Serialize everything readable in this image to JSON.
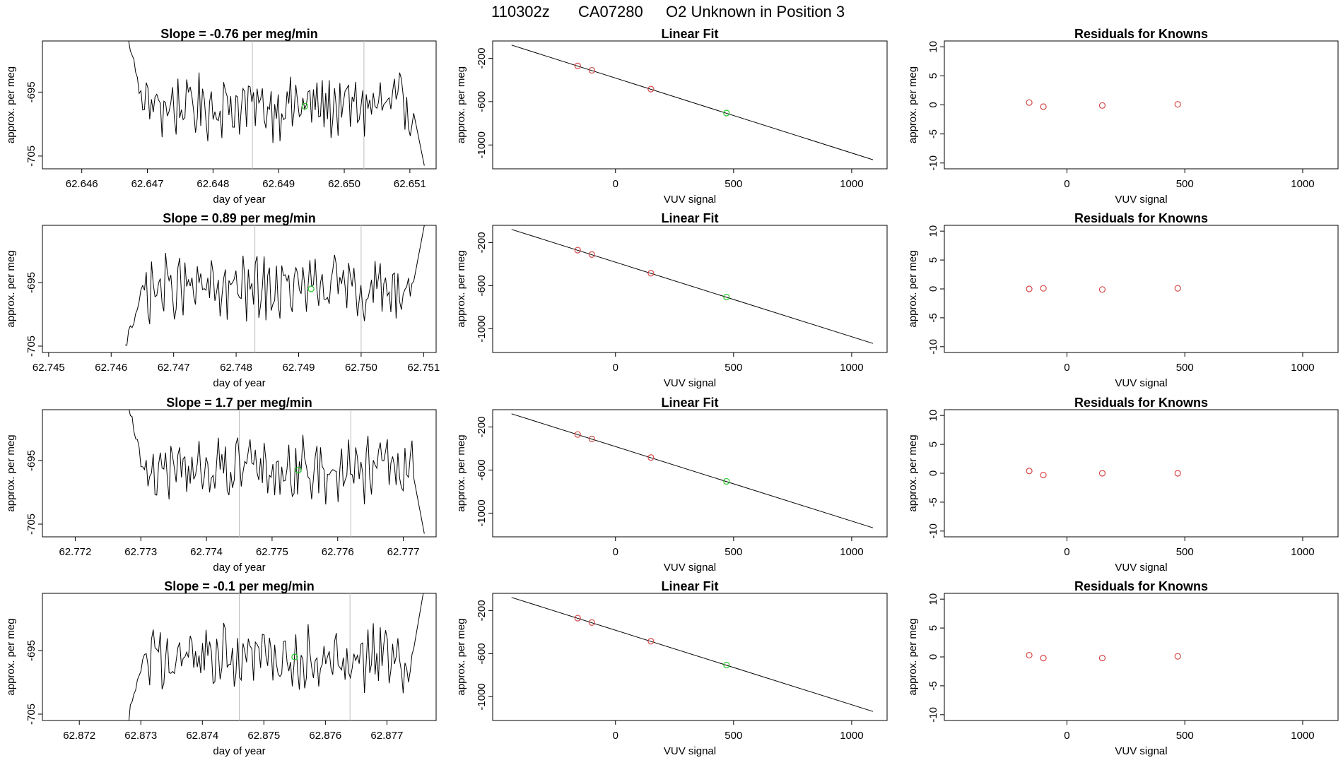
{
  "figure_title_parts": [
    "110302z",
    "CA07280",
    "O2 Unknown in Position  3"
  ],
  "chart_data": [
    {
      "type": "line",
      "title": "Slope =  -0.76  per meg/min",
      "xlabel": "day of year",
      "ylabel": "approx. per meg",
      "xlim": [
        62.6454,
        62.6514
      ],
      "ylim": [
        -707.0,
        -687.0
      ],
      "xticks": [
        "62.646",
        "62.647",
        "62.648",
        "62.649",
        "62.650",
        "62.651"
      ],
      "yticks": [
        "-695",
        "-705"
      ],
      "vlines": [
        62.6486,
        62.6503
      ],
      "marker": {
        "x": 62.6494,
        "y": -697.2,
        "color": "#22cc22"
      },
      "end_left": -684,
      "end_right": -706.5
    },
    {
      "type": "scatter",
      "title": "Linear Fit",
      "xlabel": "VUV signal",
      "ylabel": "approx. per meg",
      "xlim": [
        -520,
        1150
      ],
      "ylim": [
        -1220,
        -40
      ],
      "xticks": [
        "0",
        "500",
        "1000"
      ],
      "yticks": [
        "-200",
        "-600",
        "-1000"
      ],
      "line": {
        "x": [
          -440,
          1090
        ],
        "y": [
          -78,
          -1136
        ]
      },
      "points": [
        {
          "x": -160,
          "y": -270,
          "color": "#d64545"
        },
        {
          "x": -100,
          "y": -311,
          "color": "#d64545"
        },
        {
          "x": 150,
          "y": -484,
          "color": "#d64545"
        },
        {
          "x": 470,
          "y": -705,
          "color": "#22cc22"
        }
      ]
    },
    {
      "type": "scatter",
      "title": "Residuals for Knowns",
      "xlabel": "VUV signal",
      "ylabel": "approx. per meg",
      "xlim": [
        -520,
        1150
      ],
      "ylim": [
        -11,
        11
      ],
      "xticks": [
        "0",
        "500",
        "1000"
      ],
      "yticks": [
        "10",
        "5",
        "0",
        "-5",
        "-10"
      ],
      "points": [
        {
          "x": -160,
          "y": 0.4,
          "color": "#d64545"
        },
        {
          "x": -100,
          "y": -0.3,
          "color": "#d64545"
        },
        {
          "x": 150,
          "y": -0.1,
          "color": "#d64545"
        },
        {
          "x": 470,
          "y": 0.1,
          "color": "#d64545"
        }
      ]
    },
    {
      "type": "line",
      "title": "Slope =  0.89  per meg/min",
      "xlabel": "day of year",
      "ylabel": "approx. per meg",
      "xlim": [
        62.7449,
        62.7512
      ],
      "ylim": [
        -706.0,
        -686.0
      ],
      "xticks": [
        "62.745",
        "62.746",
        "62.747",
        "62.748",
        "62.749",
        "62.750",
        "62.751"
      ],
      "yticks": [
        "-695",
        "-705"
      ],
      "vlines": [
        62.7483,
        62.75
      ],
      "marker": {
        "x": 62.7492,
        "y": -696.0,
        "color": "#22cc22"
      },
      "end_left": -705,
      "end_right": -686
    },
    {
      "type": "scatter",
      "title": "Linear Fit",
      "xlabel": "VUV signal",
      "ylabel": "approx. per meg",
      "xlim": [
        -520,
        1150
      ],
      "ylim": [
        -1220,
        -40
      ],
      "xticks": [
        "0",
        "500",
        "1000"
      ],
      "yticks": [
        "-200",
        "-600",
        "-1000"
      ],
      "line": {
        "x": [
          -440,
          1090
        ],
        "y": [
          -78,
          -1136
        ]
      },
      "points": [
        {
          "x": -160,
          "y": -270,
          "color": "#d64545"
        },
        {
          "x": -100,
          "y": -311,
          "color": "#d64545"
        },
        {
          "x": 150,
          "y": -484,
          "color": "#d64545"
        },
        {
          "x": 470,
          "y": -705,
          "color": "#22cc22"
        }
      ]
    },
    {
      "type": "scatter",
      "title": "Residuals for Knowns",
      "xlabel": "VUV signal",
      "ylabel": "approx. per meg",
      "xlim": [
        -520,
        1150
      ],
      "ylim": [
        -11,
        11
      ],
      "xticks": [
        "0",
        "500",
        "1000"
      ],
      "yticks": [
        "10",
        "5",
        "0",
        "-5",
        "-10"
      ],
      "points": [
        {
          "x": -160,
          "y": 0.0,
          "color": "#d64545"
        },
        {
          "x": -100,
          "y": 0.1,
          "color": "#d64545"
        },
        {
          "x": 150,
          "y": -0.1,
          "color": "#d64545"
        },
        {
          "x": 470,
          "y": 0.1,
          "color": "#d64545"
        }
      ]
    },
    {
      "type": "line",
      "title": "Slope =  1.7  per meg/min",
      "xlabel": "day of year",
      "ylabel": "approx. per meg",
      "xlim": [
        62.7715,
        62.7775
      ],
      "ylim": [
        -707.0,
        -687.0
      ],
      "xticks": [
        "62.772",
        "62.773",
        "62.774",
        "62.775",
        "62.776",
        "62.777"
      ],
      "yticks": [
        "-695",
        "-705"
      ],
      "vlines": [
        62.7745,
        62.7762
      ],
      "marker": {
        "x": 62.7754,
        "y": -696.5,
        "color": "#22cc22"
      },
      "end_left": -684,
      "end_right": -706.5
    },
    {
      "type": "scatter",
      "title": "Linear Fit",
      "xlabel": "VUV signal",
      "ylabel": "approx. per meg",
      "xlim": [
        -520,
        1150
      ],
      "ylim": [
        -1220,
        -40
      ],
      "xticks": [
        "0",
        "500",
        "1000"
      ],
      "yticks": [
        "-200",
        "-600",
        "-1000"
      ],
      "line": {
        "x": [
          -440,
          1090
        ],
        "y": [
          -78,
          -1136
        ]
      },
      "points": [
        {
          "x": -160,
          "y": -270,
          "color": "#d64545"
        },
        {
          "x": -100,
          "y": -311,
          "color": "#d64545"
        },
        {
          "x": 150,
          "y": -484,
          "color": "#d64545"
        },
        {
          "x": 470,
          "y": -705,
          "color": "#22cc22"
        }
      ]
    },
    {
      "type": "scatter",
      "title": "Residuals for Knowns",
      "xlabel": "VUV signal",
      "ylabel": "approx. per meg",
      "xlim": [
        -520,
        1150
      ],
      "ylim": [
        -11,
        11
      ],
      "xticks": [
        "0",
        "500",
        "1000"
      ],
      "yticks": [
        "10",
        "5",
        "0",
        "-5",
        "-10"
      ],
      "points": [
        {
          "x": -160,
          "y": 0.4,
          "color": "#d64545"
        },
        {
          "x": -100,
          "y": -0.3,
          "color": "#d64545"
        },
        {
          "x": 150,
          "y": 0.0,
          "color": "#d64545"
        },
        {
          "x": 470,
          "y": 0.0,
          "color": "#d64545"
        }
      ]
    },
    {
      "type": "line",
      "title": "Slope =  -0.1  per meg/min",
      "xlabel": "day of year",
      "ylabel": "approx. per meg",
      "xlim": [
        62.8714,
        62.8778
      ],
      "ylim": [
        -706.0,
        -686.0
      ],
      "xticks": [
        "62.872",
        "62.873",
        "62.874",
        "62.875",
        "62.876",
        "62.877"
      ],
      "yticks": [
        "-695",
        "-705"
      ],
      "vlines": [
        62.8746,
        62.8764
      ],
      "marker": {
        "x": 62.8755,
        "y": -696.0,
        "color": "#22cc22"
      },
      "end_left": -708,
      "end_right": -685
    },
    {
      "type": "scatter",
      "title": "Linear Fit",
      "xlabel": "VUV signal",
      "ylabel": "approx. per meg",
      "xlim": [
        -520,
        1150
      ],
      "ylim": [
        -1220,
        -40
      ],
      "xticks": [
        "0",
        "500",
        "1000"
      ],
      "yticks": [
        "-200",
        "-600",
        "-1000"
      ],
      "line": {
        "x": [
          -440,
          1090
        ],
        "y": [
          -78,
          -1136
        ]
      },
      "points": [
        {
          "x": -160,
          "y": -270,
          "color": "#d64545"
        },
        {
          "x": -100,
          "y": -311,
          "color": "#d64545"
        },
        {
          "x": 150,
          "y": -484,
          "color": "#d64545"
        },
        {
          "x": 470,
          "y": -705,
          "color": "#22cc22"
        }
      ]
    },
    {
      "type": "scatter",
      "title": "Residuals for Knowns",
      "xlabel": "VUV signal",
      "ylabel": "approx. per meg",
      "xlim": [
        -520,
        1150
      ],
      "ylim": [
        -11,
        11
      ],
      "xticks": [
        "0",
        "500",
        "1000"
      ],
      "yticks": [
        "10",
        "5",
        "0",
        "-5",
        "-10"
      ],
      "points": [
        {
          "x": -160,
          "y": 0.3,
          "color": "#d64545"
        },
        {
          "x": -100,
          "y": -0.2,
          "color": "#d64545"
        },
        {
          "x": 150,
          "y": -0.2,
          "color": "#d64545"
        },
        {
          "x": 470,
          "y": 0.1,
          "color": "#d64545"
        }
      ]
    }
  ]
}
